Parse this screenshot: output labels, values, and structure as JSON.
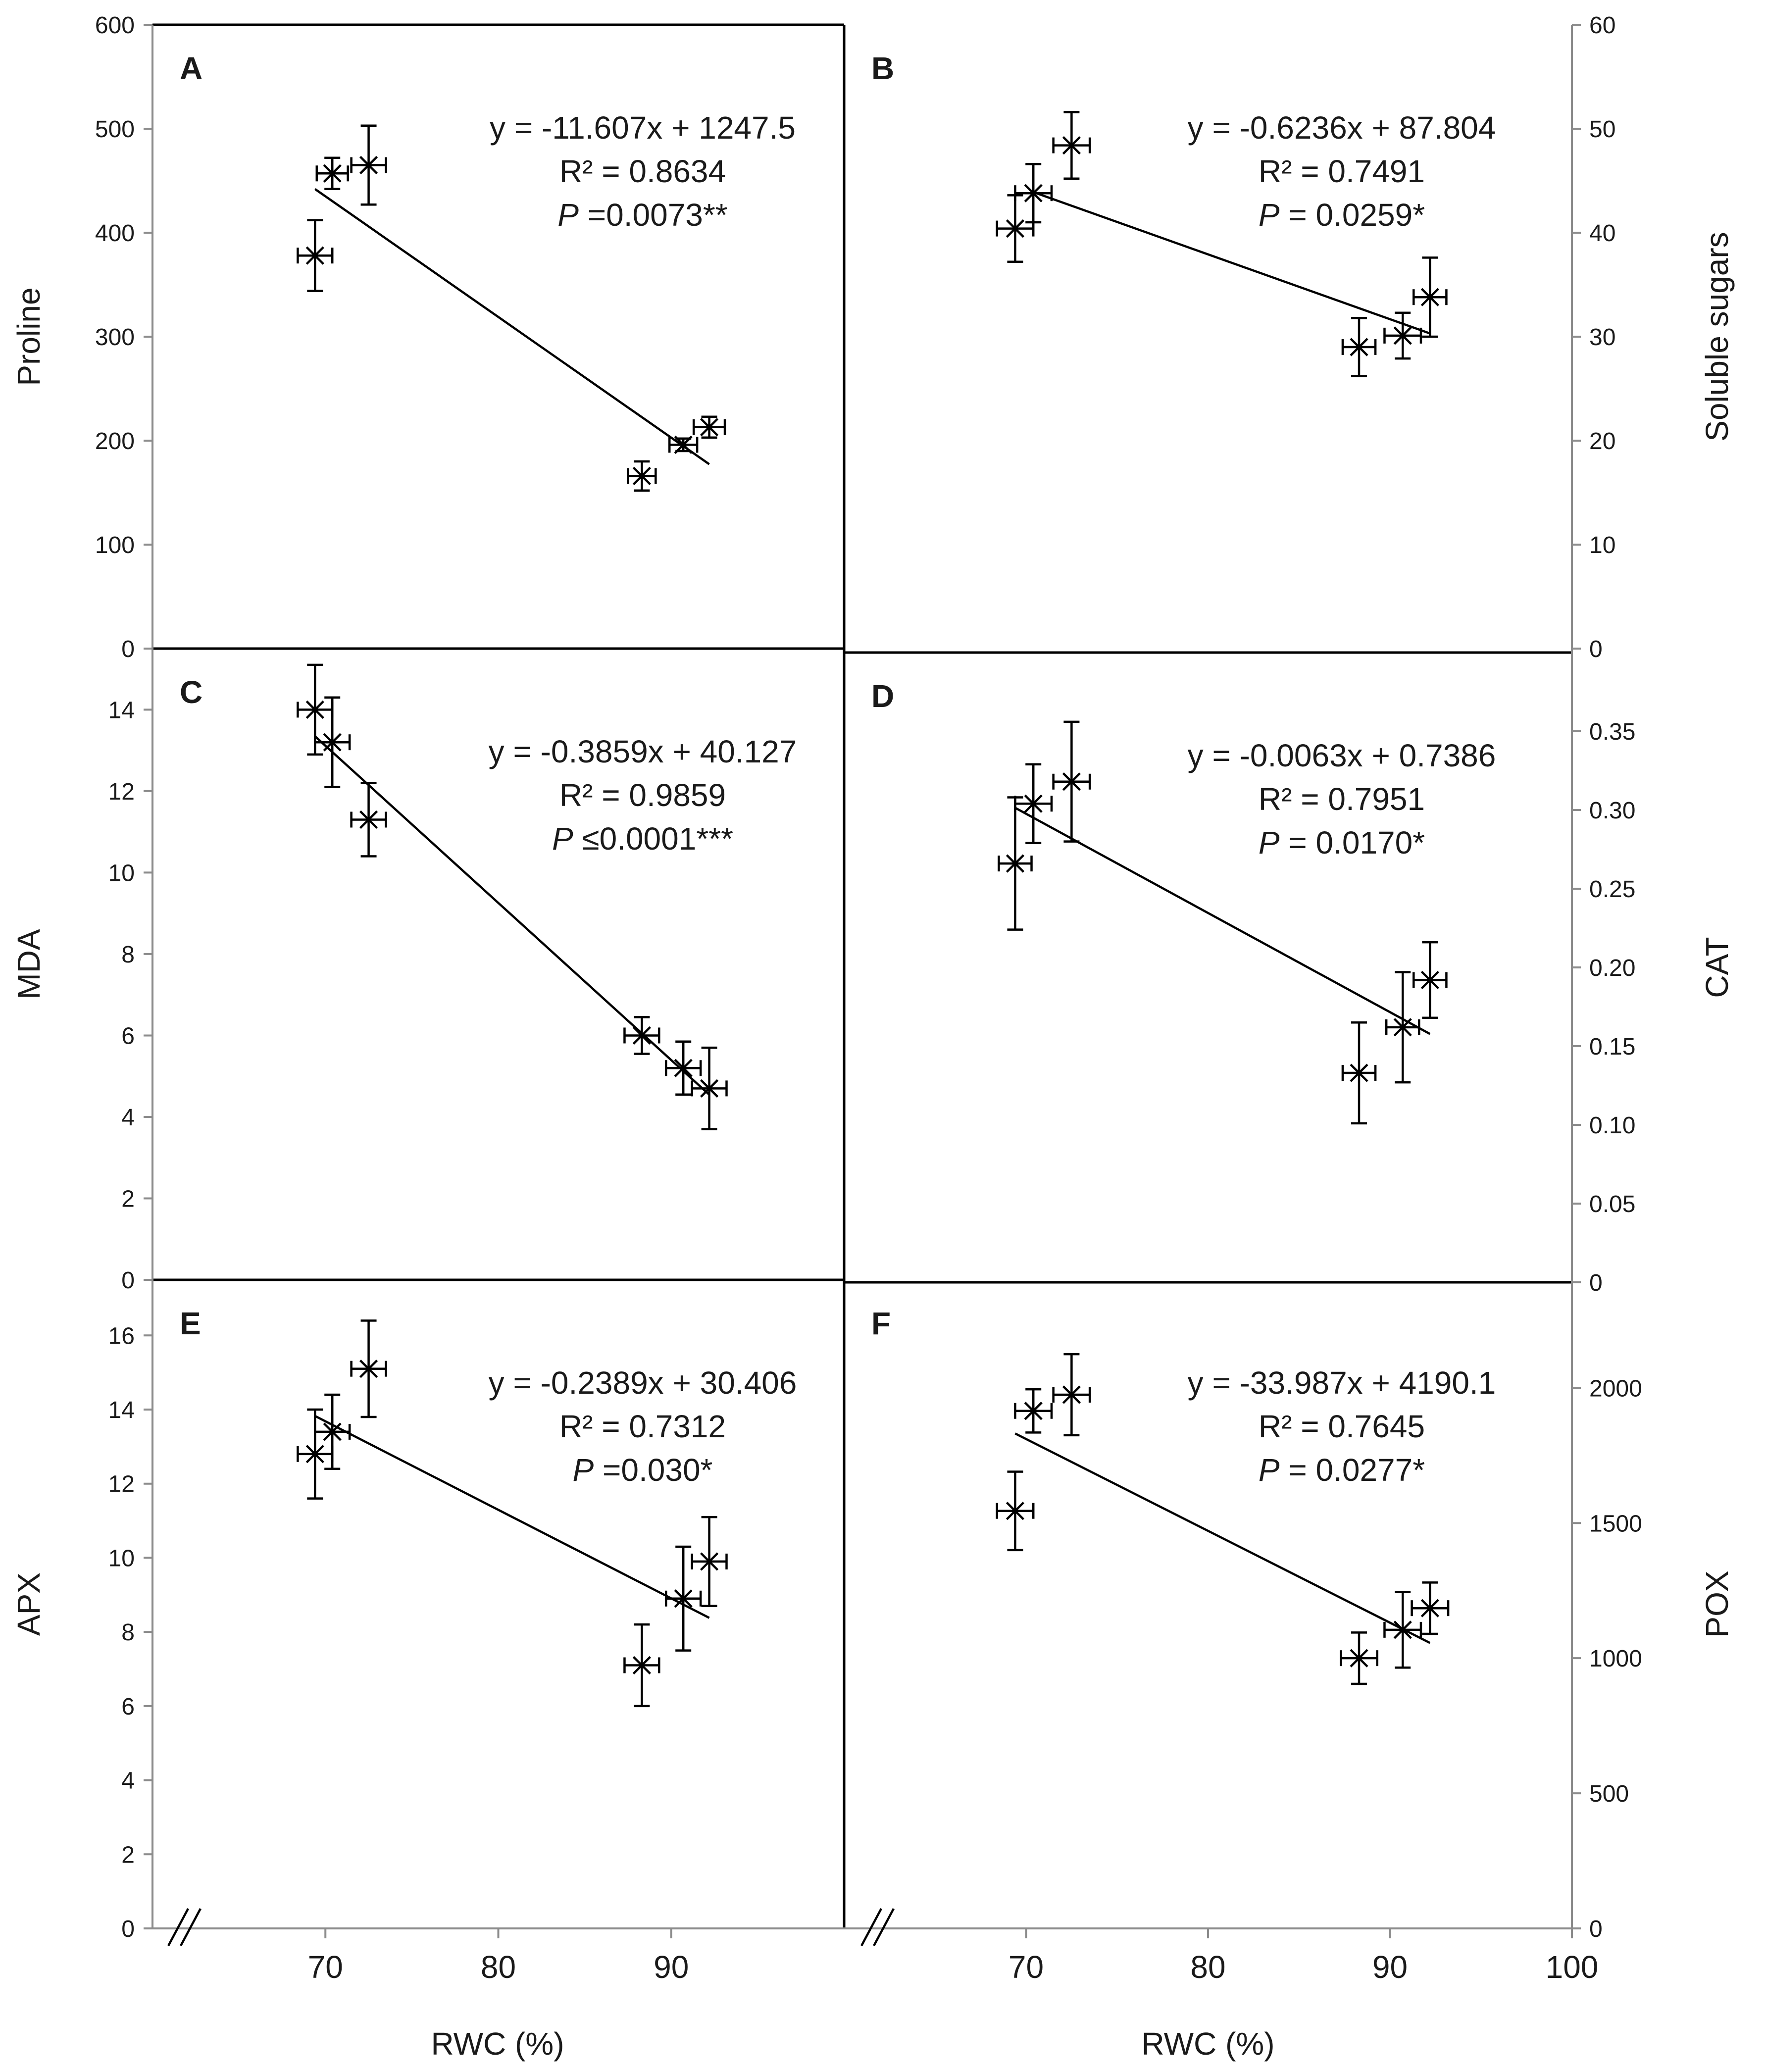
{
  "x_axis": {
    "label": "RWC (%)",
    "ticks": [
      70,
      80,
      90
    ],
    "ticks_right": [
      70,
      80,
      90,
      100
    ],
    "range": [
      60,
      100
    ]
  },
  "chart_data": [
    {
      "id": "A",
      "type": "scatter",
      "panel_label": "A",
      "ylabel": "Proline",
      "y_side": "left",
      "ylim": [
        0,
        600
      ],
      "yticks": [
        "0",
        "100",
        "200",
        "300",
        "400",
        "500",
        "600"
      ],
      "xlabel": "",
      "points": [
        {
          "x": 69.4,
          "y": 378,
          "xerr": 1.0,
          "yerr": 34
        },
        {
          "x": 70.4,
          "y": 457,
          "xerr": 0.9,
          "yerr": 15
        },
        {
          "x": 72.5,
          "y": 465,
          "xerr": 1.0,
          "yerr": 38
        },
        {
          "x": 88.3,
          "y": 166,
          "xerr": 0.8,
          "yerr": 14
        },
        {
          "x": 90.7,
          "y": 196,
          "xerr": 0.8,
          "yerr": 6
        },
        {
          "x": 92.2,
          "y": 213,
          "xerr": 0.9,
          "yerr": 10
        }
      ],
      "fit": {
        "slope": -11.607,
        "intercept": 1247.5,
        "x_from": 69.4,
        "x_to": 92.2
      },
      "equation": "y = -11.607x + 1247.5",
      "r2": "R² = 0.8634",
      "p_prefix": "P",
      "p_value": " =0.0073**"
    },
    {
      "id": "B",
      "type": "scatter",
      "panel_label": "B",
      "ylabel": "Soluble sugars",
      "y_side": "right",
      "ylim": [
        0,
        60
      ],
      "yticks": [
        "0",
        "10",
        "20",
        "30",
        "40",
        "50",
        "60"
      ],
      "xlabel": "",
      "points": [
        {
          "x": 69.4,
          "y": 40.4,
          "xerr": 1.0,
          "yerr": 3.2
        },
        {
          "x": 70.4,
          "y": 43.8,
          "xerr": 1.0,
          "yerr": 2.8
        },
        {
          "x": 72.5,
          "y": 48.4,
          "xerr": 1.0,
          "yerr": 3.2
        },
        {
          "x": 88.3,
          "y": 29.0,
          "xerr": 0.9,
          "yerr": 2.8
        },
        {
          "x": 90.7,
          "y": 30.1,
          "xerr": 1.0,
          "yerr": 2.2
        },
        {
          "x": 92.2,
          "y": 33.8,
          "xerr": 0.9,
          "yerr": 3.8
        }
      ],
      "fit": {
        "slope": -0.6236,
        "intercept": 87.804,
        "x_from": 70.4,
        "x_to": 92.2
      },
      "equation": "y = -0.6236x + 87.804",
      "r2": "R² = 0.7491",
      "p_prefix": "P",
      "p_value": " = 0.0259*"
    },
    {
      "id": "C",
      "type": "scatter",
      "panel_label": "C",
      "ylabel": "MDA",
      "y_side": "left",
      "ylim": [
        0,
        15.5
      ],
      "yticks": [
        "0",
        "2",
        "4",
        "6",
        "8",
        "10",
        "12",
        "14"
      ],
      "xlabel": "",
      "points": [
        {
          "x": 69.4,
          "y": 14.0,
          "xerr": 1.0,
          "yerr": 1.1
        },
        {
          "x": 70.4,
          "y": 13.2,
          "xerr": 1.0,
          "yerr": 1.1
        },
        {
          "x": 72.5,
          "y": 11.3,
          "xerr": 1.0,
          "yerr": 0.9
        },
        {
          "x": 88.3,
          "y": 6.0,
          "xerr": 1.0,
          "yerr": 0.45
        },
        {
          "x": 90.7,
          "y": 5.2,
          "xerr": 1.0,
          "yerr": 0.65
        },
        {
          "x": 92.2,
          "y": 4.7,
          "xerr": 1.0,
          "yerr": 1.0
        }
      ],
      "fit": {
        "slope": -0.3859,
        "intercept": 40.127,
        "x_from": 69.4,
        "x_to": 92.2
      },
      "equation": "y = -0.3859x + 40.127",
      "r2": "R² = 0.9859",
      "p_prefix": "P",
      "p_value": " ≤0.0001***"
    },
    {
      "id": "D",
      "type": "scatter",
      "panel_label": "D",
      "ylabel": "CAT",
      "y_side": "right",
      "ylim": [
        0,
        0.4
      ],
      "yticks": [
        "0",
        "0.05",
        "0.10",
        "0.15",
        "0.20",
        "0.25",
        "0.30",
        "0.35"
      ],
      "xlabel": "",
      "points": [
        {
          "x": 69.4,
          "y": 0.266,
          "xerr": 0.9,
          "yerr": 0.042
        },
        {
          "x": 70.4,
          "y": 0.304,
          "xerr": 1.0,
          "yerr": 0.025
        },
        {
          "x": 72.5,
          "y": 0.318,
          "xerr": 1.0,
          "yerr": 0.038
        },
        {
          "x": 88.3,
          "y": 0.133,
          "xerr": 0.9,
          "yerr": 0.032
        },
        {
          "x": 90.7,
          "y": 0.162,
          "xerr": 0.9,
          "yerr": 0.035
        },
        {
          "x": 92.2,
          "y": 0.192,
          "xerr": 0.9,
          "yerr": 0.024
        }
      ],
      "fit": {
        "slope": -0.0063,
        "intercept": 0.7386,
        "x_from": 69.4,
        "x_to": 92.2
      },
      "equation": "y = -0.0063x + 0.7386",
      "r2": "R² = 0.7951",
      "p_prefix": "P",
      "p_value": " = 0.0170*"
    },
    {
      "id": "E",
      "type": "scatter",
      "panel_label": "E",
      "ylabel": "APX",
      "y_side": "left",
      "ylim": [
        0,
        17.5
      ],
      "yticks": [
        "0",
        "2",
        "4",
        "6",
        "8",
        "10",
        "12",
        "14",
        "16"
      ],
      "xlabel": "RWC (%)",
      "points": [
        {
          "x": 69.4,
          "y": 12.8,
          "xerr": 1.0,
          "yerr": 1.2
        },
        {
          "x": 70.4,
          "y": 13.4,
          "xerr": 1.0,
          "yerr": 1.0
        },
        {
          "x": 72.5,
          "y": 15.1,
          "xerr": 1.0,
          "yerr": 1.3
        },
        {
          "x": 88.3,
          "y": 7.1,
          "xerr": 1.0,
          "yerr": 1.1
        },
        {
          "x": 90.7,
          "y": 8.9,
          "xerr": 1.0,
          "yerr": 1.4
        },
        {
          "x": 92.2,
          "y": 9.9,
          "xerr": 1.0,
          "yerr": 1.2
        }
      ],
      "fit": {
        "slope": -0.2389,
        "intercept": 30.406,
        "x_from": 69.4,
        "x_to": 92.2
      },
      "equation": "y = -0.2389x + 30.406",
      "r2": "R² = 0.7312",
      "p_prefix": "P",
      "p_value": " =0.030*"
    },
    {
      "id": "F",
      "type": "scatter",
      "panel_label": "F",
      "ylabel": "POX",
      "y_side": "right",
      "ylim": [
        0,
        2400
      ],
      "yticks": [
        "0",
        "500",
        "1000",
        "1500",
        "2000"
      ],
      "xlabel": "RWC (%)",
      "points": [
        {
          "x": 69.4,
          "y": 1545,
          "xerr": 1.0,
          "yerr": 145
        },
        {
          "x": 70.4,
          "y": 1915,
          "xerr": 1.0,
          "yerr": 80
        },
        {
          "x": 72.5,
          "y": 1975,
          "xerr": 1.0,
          "yerr": 150
        },
        {
          "x": 88.3,
          "y": 1000,
          "xerr": 1.0,
          "yerr": 95
        },
        {
          "x": 90.7,
          "y": 1105,
          "xerr": 1.0,
          "yerr": 140
        },
        {
          "x": 92.2,
          "y": 1185,
          "xerr": 1.0,
          "yerr": 95
        }
      ],
      "fit": {
        "slope": -33.987,
        "intercept": 4190.1,
        "x_from": 69.4,
        "x_to": 92.2
      },
      "equation": "y = -33.987x + 4190.1",
      "r2": "R² = 0.7645",
      "p_prefix": "P",
      "p_value": " = 0.0277*"
    }
  ]
}
